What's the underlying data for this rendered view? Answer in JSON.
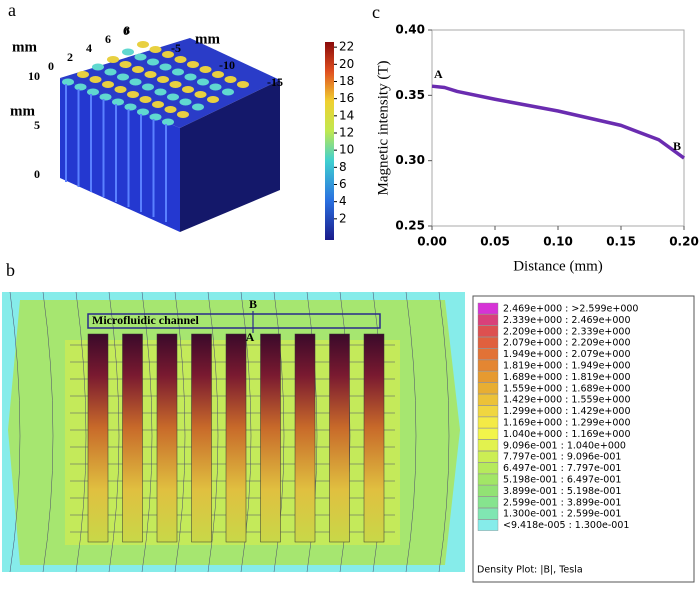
{
  "panel_a": {
    "label": "a",
    "axis_unit_labels": [
      "mm",
      "mm",
      "mm"
    ],
    "width_ticks": [
      "0",
      "2",
      "4",
      "6",
      "8"
    ],
    "length_ticks": [
      "0",
      "-5",
      "-10",
      "-15"
    ],
    "height_ticks": [
      "0",
      "5",
      "10"
    ],
    "colorbar_range": [
      0,
      22.6
    ],
    "colorbar_ticks": [
      2,
      4,
      6,
      8,
      10,
      12,
      14,
      16,
      18,
      20,
      22
    ]
  },
  "panel_b": {
    "label": "b",
    "channel_label": "Microfluidic channel",
    "point_a": "A",
    "point_b": "B",
    "legend": [
      {
        "text": "2.469e+000 : >2.599e+000",
        "color": "#d633d6"
      },
      {
        "text": "2.339e+000 : 2.469e+000",
        "color": "#d9407a"
      },
      {
        "text": "2.209e+000 : 2.339e+000",
        "color": "#dd5050"
      },
      {
        "text": "2.079e+000 : 2.209e+000",
        "color": "#e0603e"
      },
      {
        "text": "1.949e+000 : 2.079e+000",
        "color": "#e27236"
      },
      {
        "text": "1.819e+000 : 1.949e+000",
        "color": "#e48632"
      },
      {
        "text": "1.689e+000 : 1.819e+000",
        "color": "#e69a30"
      },
      {
        "text": "1.559e+000 : 1.689e+000",
        "color": "#e8ae32"
      },
      {
        "text": "1.429e+000 : 1.559e+000",
        "color": "#ecc238"
      },
      {
        "text": "1.299e+000 : 1.429e+000",
        "color": "#f0d640"
      },
      {
        "text": "1.169e+000 : 1.299e+000",
        "color": "#f4ea46"
      },
      {
        "text": "1.040e+000 : 1.169e+000",
        "color": "#f2f44a"
      },
      {
        "text": "9.096e-001 : 1.040e+000",
        "color": "#e2f24e"
      },
      {
        "text": "7.797e-001 : 9.096e-001",
        "color": "#ccee54"
      },
      {
        "text": "6.497e-001 : 7.797e-001",
        "color": "#b6ea5c"
      },
      {
        "text": "5.198e-001 : 6.497e-001",
        "color": "#a2e666"
      },
      {
        "text": "3.899e-001 : 5.198e-001",
        "color": "#92e274"
      },
      {
        "text": "2.599e-001 : 3.899e-001",
        "color": "#86e48e"
      },
      {
        "text": "1.300e-001 : 2.599e-001",
        "color": "#80e6b2"
      },
      {
        "text": "<9.418e-005 : 1.300e-001",
        "color": "#86ecea"
      }
    ],
    "legend_footer": "Density Plot: |B|, Tesla"
  },
  "chart_data": {
    "type": "line",
    "panel_label": "c",
    "x_label": "Distance (mm)",
    "y_label": "Magnetic intensity (T)",
    "x": [
      0,
      0.01,
      0.02,
      0.05,
      0.1,
      0.15,
      0.18,
      0.2
    ],
    "series": [
      {
        "name": "Magnetic intensity",
        "color": "#6a2cb0",
        "values": [
          0.357,
          0.356,
          0.353,
          0.347,
          0.338,
          0.327,
          0.316,
          0.302
        ]
      }
    ],
    "annotations": [
      "A",
      "B"
    ],
    "xlim": [
      0,
      0.2
    ],
    "ylim": [
      0.25,
      0.4
    ],
    "xticks": [
      {
        "value": 0,
        "label": "0.00"
      },
      {
        "value": 0.05,
        "label": "0.05"
      },
      {
        "value": 0.1,
        "label": "0.10"
      },
      {
        "value": 0.15,
        "label": "0.15"
      },
      {
        "value": 0.2,
        "label": "0.20"
      }
    ],
    "yticks": [
      {
        "value": 0.25,
        "label": "0.25"
      },
      {
        "value": 0.3,
        "label": "0.30"
      },
      {
        "value": 0.35,
        "label": "0.35"
      },
      {
        "value": 0.4,
        "label": "0.40"
      }
    ],
    "grid": false
  }
}
